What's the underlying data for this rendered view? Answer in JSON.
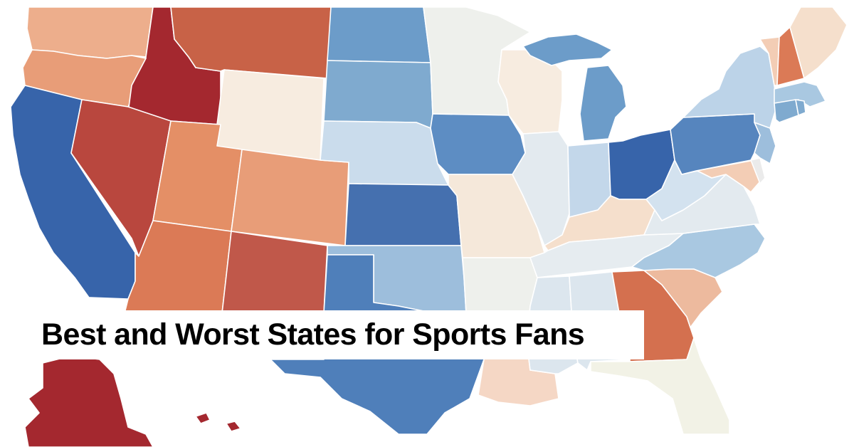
{
  "title": "Best and Worst States for Sports Fans",
  "palette": {
    "dark_red": "#A4282F",
    "red": "#B9473E",
    "red_orange": "#C86247",
    "orange": "#DB7A56",
    "light_orange": "#E89D78",
    "peach": "#EDAE8C",
    "light_peach": "#F3CDB5",
    "cream": "#F7ECE0",
    "off_white": "#EEF0EC",
    "very_light_blue": "#DCE6EE",
    "light_blue": "#CADCEC",
    "pale_blue": "#A9C8E1",
    "mid_blue": "#7FAACF",
    "blue": "#6C9CC9",
    "strong_blue": "#5685BE",
    "dark_blue": "#3764AA",
    "pale_yellow": "#F2F2E6",
    "background": "#FFFFFF"
  },
  "states": [
    {
      "name": "Washington",
      "color": "#EDAE8C"
    },
    {
      "name": "Oregon",
      "color": "#E89D78"
    },
    {
      "name": "California",
      "color": "#3764AA"
    },
    {
      "name": "Idaho",
      "color": "#A4282F"
    },
    {
      "name": "Nevada",
      "color": "#B9473E"
    },
    {
      "name": "Montana",
      "color": "#C86247"
    },
    {
      "name": "Wyoming",
      "color": "#F7ECE0"
    },
    {
      "name": "Utah",
      "color": "#E48F66"
    },
    {
      "name": "Arizona",
      "color": "#DB7A56"
    },
    {
      "name": "Colorado",
      "color": "#E89D78"
    },
    {
      "name": "New Mexico",
      "color": "#C0584A"
    },
    {
      "name": "North Dakota",
      "color": "#6C9CC9"
    },
    {
      "name": "South Dakota",
      "color": "#7FAACF"
    },
    {
      "name": "Nebraska",
      "color": "#CADCEC"
    },
    {
      "name": "Kansas",
      "color": "#4570AF"
    },
    {
      "name": "Oklahoma",
      "color": "#9DBEDC"
    },
    {
      "name": "Texas",
      "color": "#4F7FBA"
    },
    {
      "name": "Minnesota",
      "color": "#EEF0EC"
    },
    {
      "name": "Iowa",
      "color": "#5D8DC3"
    },
    {
      "name": "Missouri",
      "color": "#F5E8DA"
    },
    {
      "name": "Arkansas",
      "color": "#EEF0EC"
    },
    {
      "name": "Louisiana",
      "color": "#F5D7C5"
    },
    {
      "name": "Wisconsin",
      "color": "#F7ECE0"
    },
    {
      "name": "Illinois",
      "color": "#E3EAEF"
    },
    {
      "name": "Michigan",
      "color": "#6C9CC9"
    },
    {
      "name": "Indiana",
      "color": "#C3D7EA"
    },
    {
      "name": "Ohio",
      "color": "#3764AA"
    },
    {
      "name": "Kentucky",
      "color": "#F5DFCC"
    },
    {
      "name": "Tennessee",
      "color": "#E6ECF0"
    },
    {
      "name": "Mississippi",
      "color": "#DCE6EE"
    },
    {
      "name": "Alabama",
      "color": "#DCE6EE"
    },
    {
      "name": "Georgia",
      "color": "#D4704F"
    },
    {
      "name": "Florida",
      "color": "#F2F2E6"
    },
    {
      "name": "South Carolina",
      "color": "#EDBA9E"
    },
    {
      "name": "North Carolina",
      "color": "#A9C8E1"
    },
    {
      "name": "Virginia",
      "color": "#E3EAEF"
    },
    {
      "name": "West Virginia",
      "color": "#D3E2EF"
    },
    {
      "name": "Maryland",
      "color": "#F3CDB5"
    },
    {
      "name": "Delaware",
      "color": "#EBEBEB"
    },
    {
      "name": "Pennsylvania",
      "color": "#5685BE"
    },
    {
      "name": "New Jersey",
      "color": "#9DBEDC"
    },
    {
      "name": "New York",
      "color": "#BCD3E8"
    },
    {
      "name": "Connecticut",
      "color": "#7FAACF"
    },
    {
      "name": "Rhode Island",
      "color": "#7FAACF"
    },
    {
      "name": "Massachusetts",
      "color": "#A9C8E1"
    },
    {
      "name": "Vermont",
      "color": "#F3CDB5"
    },
    {
      "name": "New Hampshire",
      "color": "#DB7A56"
    },
    {
      "name": "Maine",
      "color": "#F5DFCC"
    },
    {
      "name": "Alaska",
      "color": "#A4282F"
    }
  ]
}
